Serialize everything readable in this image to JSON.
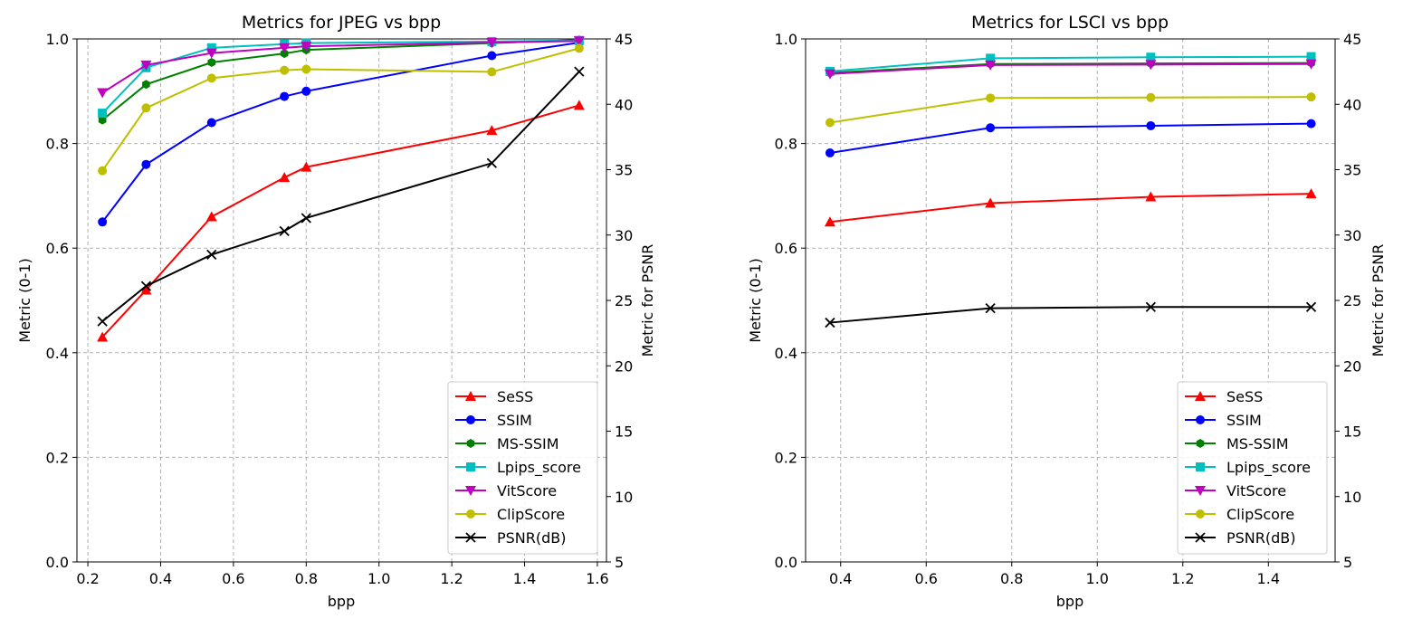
{
  "chart_data": [
    {
      "type": "line",
      "title": "Metrics for JPEG vs bpp",
      "xlabel": "bpp",
      "ylabel": "Metric (0-1)",
      "y2label": "Metric for PSNR",
      "xlim": [
        0.17,
        1.625
      ],
      "ylim": [
        0,
        1
      ],
      "y2lim": [
        5,
        45
      ],
      "grid": true,
      "legend_position": "lower-right",
      "xticks": [
        0.2,
        0.4,
        0.6,
        0.8,
        1.0,
        1.2,
        1.4,
        1.6
      ],
      "xtick_labels": [
        "0.2",
        "0.4",
        "0.6",
        "0.8",
        "1.0",
        "1.2",
        "1.4",
        "1.6"
      ],
      "yticks": [
        0.0,
        0.2,
        0.4,
        0.6,
        0.8,
        1.0
      ],
      "ytick_labels": [
        "0.0",
        "0.2",
        "0.4",
        "0.6",
        "0.8",
        "1.0"
      ],
      "y2ticks": [
        5,
        10,
        15,
        20,
        25,
        30,
        35,
        40,
        45
      ],
      "y2tick_labels": [
        "5",
        "10",
        "15",
        "20",
        "25",
        "30",
        "35",
        "40",
        "45"
      ],
      "x": [
        0.24,
        0.36,
        0.54,
        0.74,
        0.8,
        1.31,
        1.55
      ],
      "series": [
        {
          "name": "SeSS",
          "color": "#ff0000",
          "marker": "triangle-up",
          "axis": "left",
          "values": [
            0.43,
            0.52,
            0.66,
            0.735,
            0.755,
            0.825,
            0.873
          ]
        },
        {
          "name": "SSIM",
          "color": "#0000ff",
          "marker": "circle",
          "axis": "left",
          "values": [
            0.65,
            0.76,
            0.84,
            0.89,
            0.9,
            0.968,
            0.993
          ]
        },
        {
          "name": "MS-SSIM",
          "color": "#008000",
          "marker": "hexagon",
          "axis": "left",
          "values": [
            0.845,
            0.913,
            0.955,
            0.972,
            0.979,
            0.992,
            0.998
          ]
        },
        {
          "name": "Lpips_score",
          "color": "#00bfbf",
          "marker": "square",
          "axis": "left",
          "values": [
            0.858,
            0.945,
            0.983,
            0.99,
            0.992,
            0.995,
            0.997
          ]
        },
        {
          "name": "VitScore",
          "color": "#bf00bf",
          "marker": "triangle-down",
          "axis": "left",
          "values": [
            0.897,
            0.95,
            0.973,
            0.983,
            0.986,
            0.993,
            0.996
          ]
        },
        {
          "name": "ClipScore",
          "color": "#bfbf00",
          "marker": "circle",
          "axis": "left",
          "values": [
            0.748,
            0.868,
            0.925,
            0.94,
            0.942,
            0.937,
            0.982
          ]
        },
        {
          "name": "PSNR(dB)",
          "color": "#000000",
          "marker": "x",
          "axis": "right",
          "values": [
            23.4,
            26.1,
            28.5,
            30.3,
            31.3,
            35.5,
            42.5
          ]
        }
      ]
    },
    {
      "type": "line",
      "title": "Metrics for LSCI vs bpp",
      "xlabel": "bpp",
      "ylabel": "Metric (0-1)",
      "y2label": "Metric for PSNR",
      "xlim": [
        0.318,
        1.556
      ],
      "ylim": [
        0,
        1
      ],
      "y2lim": [
        5,
        45
      ],
      "grid": true,
      "legend_position": "lower-right",
      "xticks": [
        0.4,
        0.6,
        0.8,
        1.0,
        1.2,
        1.4
      ],
      "xtick_labels": [
        "0.4",
        "0.6",
        "0.8",
        "1.0",
        "1.2",
        "1.4"
      ],
      "yticks": [
        0.0,
        0.2,
        0.4,
        0.6,
        0.8,
        1.0
      ],
      "ytick_labels": [
        "0.0",
        "0.2",
        "0.4",
        "0.6",
        "0.8",
        "1.0"
      ],
      "y2ticks": [
        5,
        10,
        15,
        20,
        25,
        30,
        35,
        40,
        45
      ],
      "y2tick_labels": [
        "5",
        "10",
        "15",
        "20",
        "25",
        "30",
        "35",
        "40",
        "45"
      ],
      "x": [
        0.375,
        0.75,
        1.125,
        1.5
      ],
      "series": [
        {
          "name": "SeSS",
          "color": "#ff0000",
          "marker": "triangle-up",
          "axis": "left",
          "values": [
            0.65,
            0.686,
            0.698,
            0.704
          ]
        },
        {
          "name": "SSIM",
          "color": "#0000ff",
          "marker": "circle",
          "axis": "left",
          "values": [
            0.782,
            0.83,
            0.834,
            0.838
          ]
        },
        {
          "name": "MS-SSIM",
          "color": "#008000",
          "marker": "hexagon",
          "axis": "left",
          "values": [
            0.935,
            0.952,
            0.953,
            0.954
          ]
        },
        {
          "name": "Lpips_score",
          "color": "#00bfbf",
          "marker": "square",
          "axis": "left",
          "values": [
            0.938,
            0.963,
            0.965,
            0.966
          ]
        },
        {
          "name": "VitScore",
          "color": "#bf00bf",
          "marker": "triangle-down",
          "axis": "left",
          "values": [
            0.933,
            0.95,
            0.951,
            0.952
          ]
        },
        {
          "name": "ClipScore",
          "color": "#bfbf00",
          "marker": "circle",
          "axis": "left",
          "values": [
            0.84,
            0.887,
            0.888,
            0.889
          ]
        },
        {
          "name": "PSNR(dB)",
          "color": "#000000",
          "marker": "x",
          "axis": "right",
          "values": [
            23.3,
            24.4,
            24.5,
            24.5
          ]
        }
      ]
    }
  ]
}
